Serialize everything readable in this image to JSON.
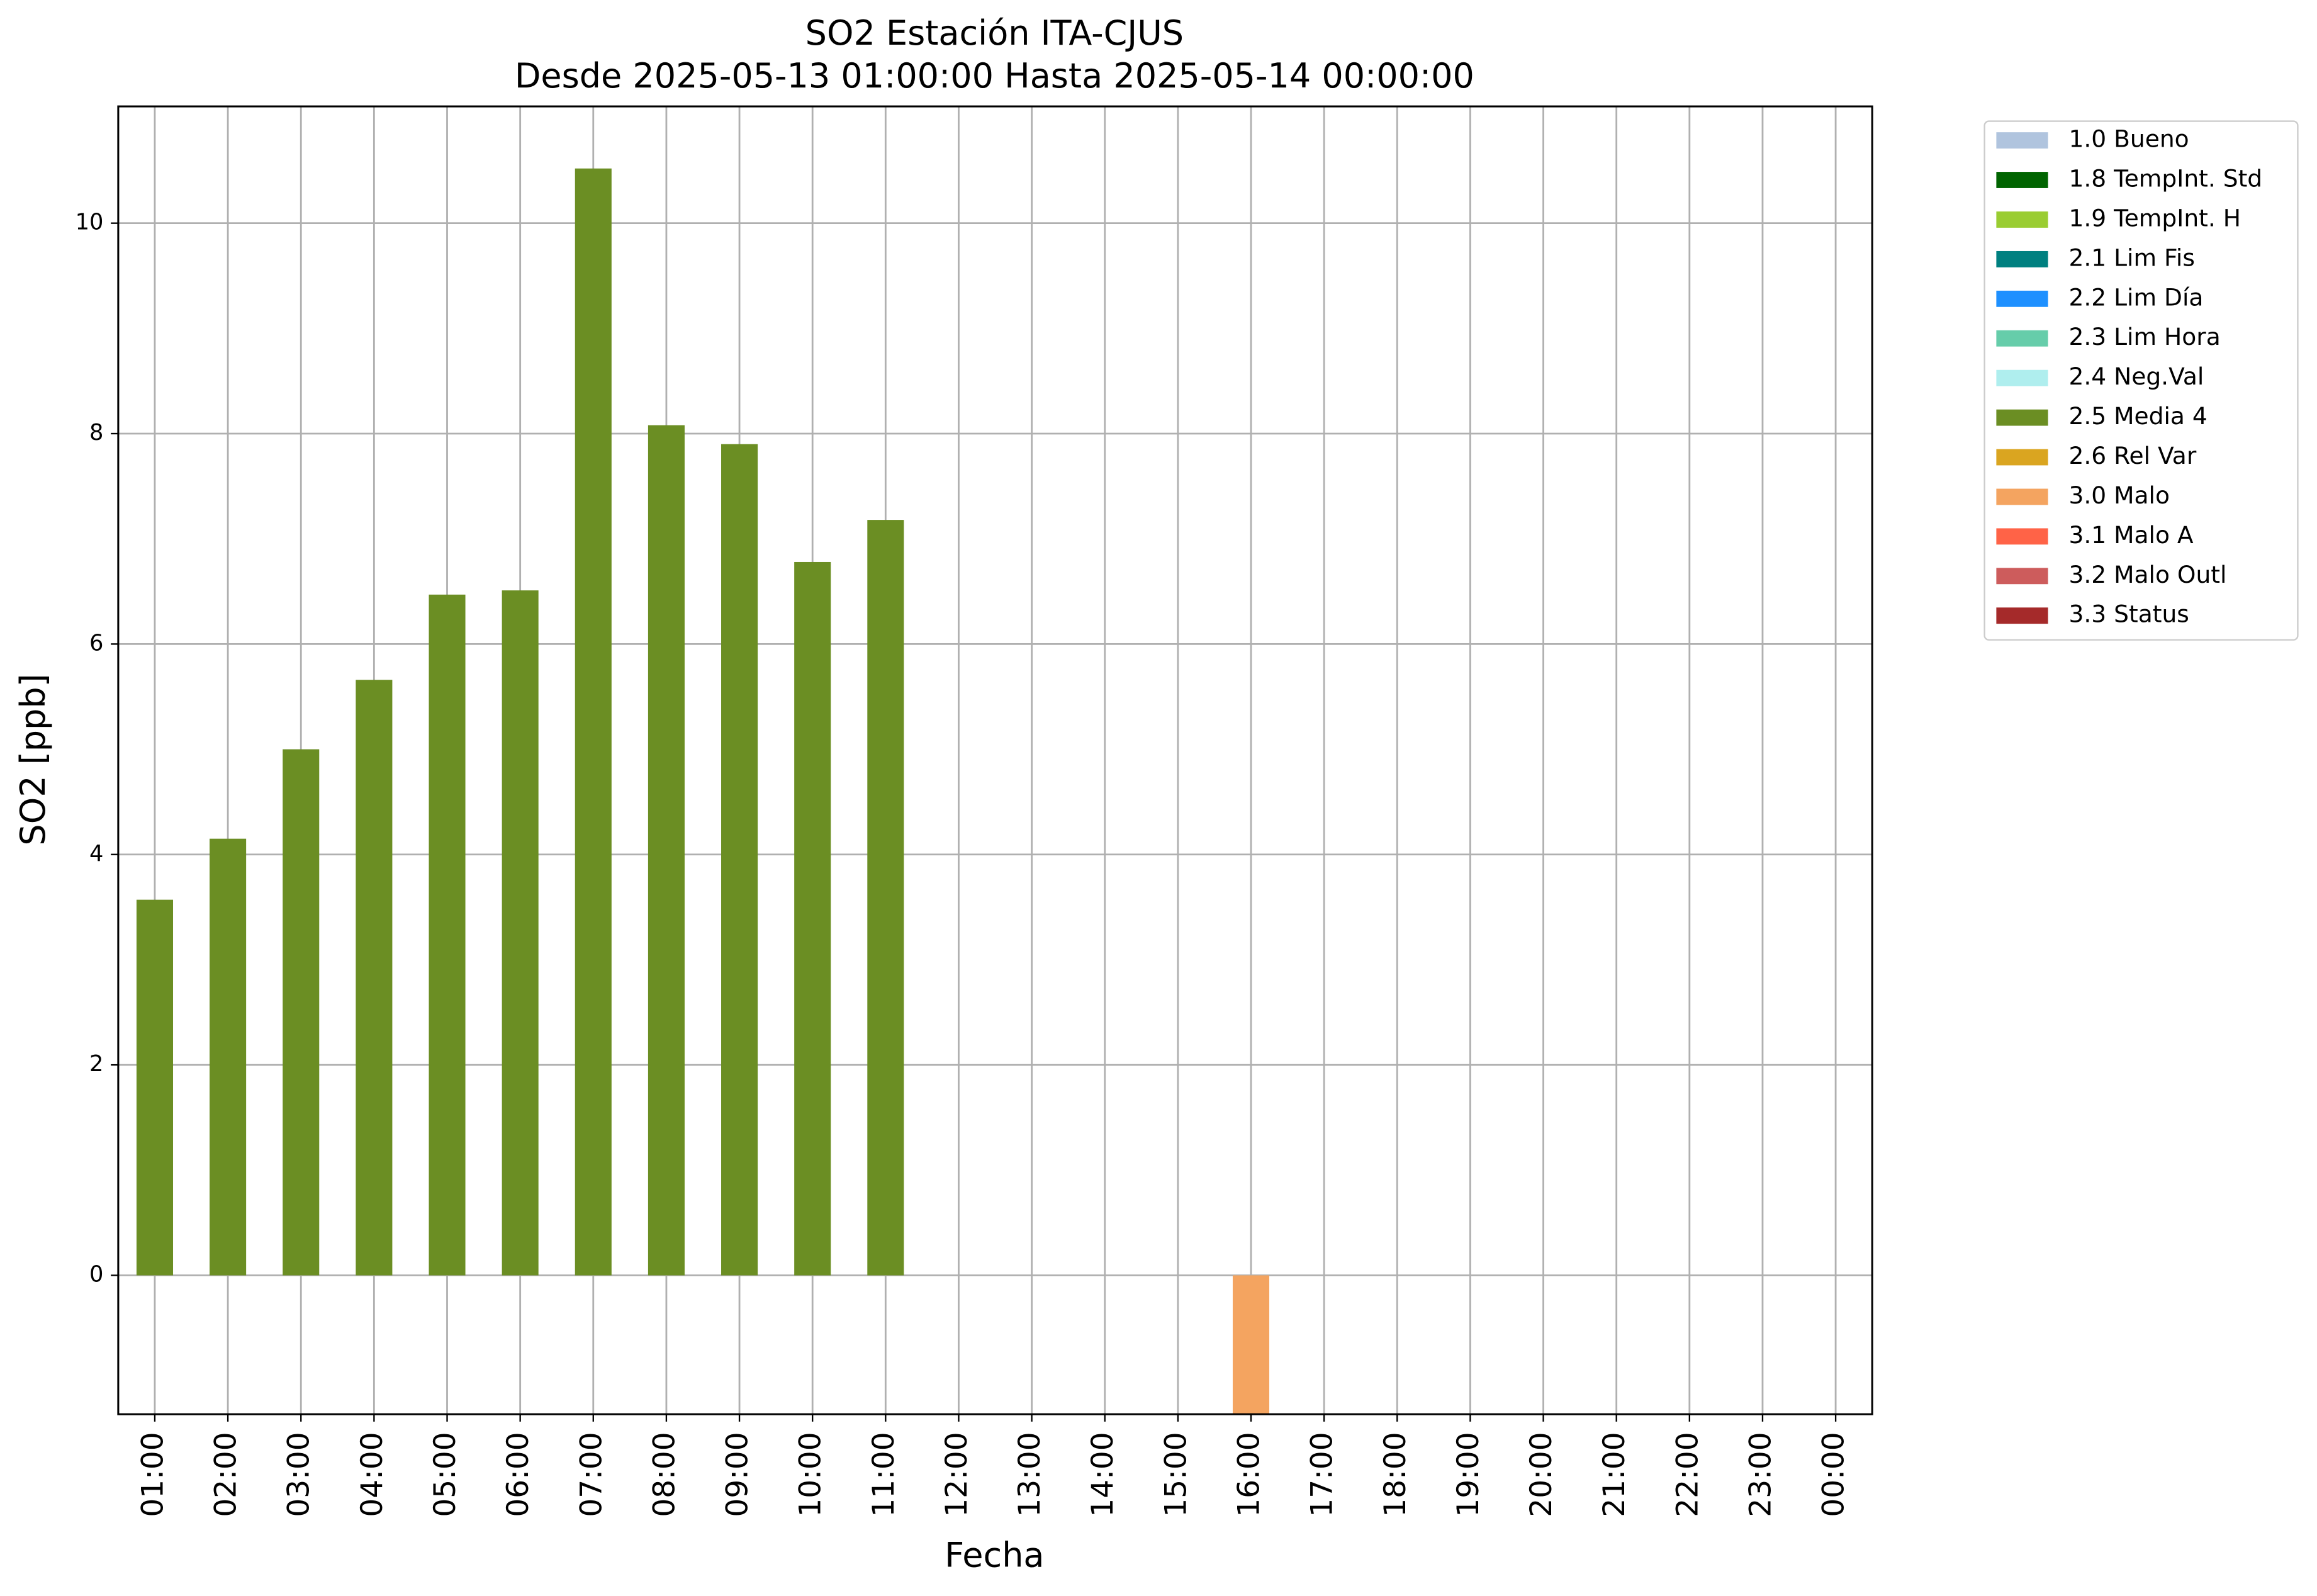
{
  "chart_data": {
    "type": "bar",
    "title": "SO2 Estación ITA-CJUS",
    "subtitle": "Desde 2025-05-13 01:00:00 Hasta 2025-05-14 00:00:00",
    "x_label": "Fecha",
    "y_label": "SO2 [ppb]",
    "categories": [
      "01:00",
      "02:00",
      "03:00",
      "04:00",
      "05:00",
      "06:00",
      "07:00",
      "08:00",
      "09:00",
      "10:00",
      "11:00",
      "12:00",
      "13:00",
      "14:00",
      "15:00",
      "16:00",
      "17:00",
      "18:00",
      "19:00",
      "20:00",
      "21:00",
      "22:00",
      "23:00",
      "00:00"
    ],
    "ylim": [
      -1.32,
      11.11
    ],
    "yticks": [
      0,
      2,
      4,
      6,
      8,
      10
    ],
    "grid": true,
    "legend": "outside-upper-right",
    "series": [
      {
        "name": "1.0 Bueno",
        "color": "#b0c4de",
        "values": [
          null,
          null,
          null,
          null,
          null,
          null,
          null,
          null,
          null,
          null,
          null,
          null,
          null,
          null,
          null,
          null,
          null,
          null,
          null,
          null,
          null,
          null,
          null,
          null
        ]
      },
      {
        "name": "1.8 TempInt. Std",
        "color": "#006400",
        "values": [
          null,
          null,
          null,
          null,
          null,
          null,
          null,
          null,
          null,
          null,
          null,
          null,
          null,
          null,
          null,
          null,
          null,
          null,
          null,
          null,
          null,
          null,
          null,
          null
        ]
      },
      {
        "name": "1.9 TempInt. H",
        "color": "#9acd32",
        "values": [
          null,
          null,
          null,
          null,
          null,
          null,
          null,
          null,
          null,
          null,
          null,
          null,
          null,
          null,
          null,
          null,
          null,
          null,
          null,
          null,
          null,
          null,
          null,
          null
        ]
      },
      {
        "name": "2.1 Lim Fis",
        "color": "#008080",
        "values": [
          null,
          null,
          null,
          null,
          null,
          null,
          null,
          null,
          null,
          null,
          null,
          null,
          null,
          null,
          null,
          null,
          null,
          null,
          null,
          null,
          null,
          null,
          null,
          null
        ]
      },
      {
        "name": "2.2 Lim Día",
        "color": "#1e90ff",
        "values": [
          null,
          null,
          null,
          null,
          null,
          null,
          null,
          null,
          null,
          null,
          null,
          null,
          null,
          null,
          null,
          null,
          null,
          null,
          null,
          null,
          null,
          null,
          null,
          null
        ]
      },
      {
        "name": "2.3 Lim Hora",
        "color": "#66cdaa",
        "values": [
          null,
          null,
          null,
          null,
          null,
          null,
          null,
          null,
          null,
          null,
          null,
          null,
          null,
          null,
          null,
          null,
          null,
          null,
          null,
          null,
          null,
          null,
          null,
          null
        ]
      },
      {
        "name": "2.4 Neg.Val",
        "color": "#afeeee",
        "values": [
          null,
          null,
          null,
          null,
          null,
          null,
          null,
          null,
          null,
          null,
          null,
          null,
          null,
          null,
          null,
          null,
          null,
          null,
          null,
          null,
          null,
          null,
          null,
          null
        ]
      },
      {
        "name": "2.5 Media 4",
        "color": "#6b8e23",
        "values": [
          3.57,
          4.15,
          5.0,
          5.66,
          6.47,
          6.51,
          10.52,
          8.08,
          7.9,
          6.78,
          7.18,
          null,
          null,
          null,
          null,
          null,
          null,
          null,
          null,
          null,
          null,
          null,
          null,
          null
        ]
      },
      {
        "name": "2.6 Rel Var",
        "color": "#daa520",
        "values": [
          null,
          null,
          null,
          null,
          null,
          null,
          null,
          null,
          null,
          null,
          null,
          null,
          null,
          null,
          null,
          null,
          null,
          null,
          null,
          null,
          null,
          null,
          null,
          null
        ]
      },
      {
        "name": "3.0 Malo",
        "color": "#f4a460",
        "values": [
          null,
          null,
          null,
          null,
          null,
          null,
          null,
          null,
          null,
          null,
          null,
          null,
          null,
          null,
          null,
          -1.32,
          null,
          null,
          null,
          null,
          null,
          null,
          null,
          null
        ]
      },
      {
        "name": "3.1 Malo A",
        "color": "#ff6347",
        "values": [
          null,
          null,
          null,
          null,
          null,
          null,
          null,
          null,
          null,
          null,
          null,
          null,
          null,
          null,
          null,
          null,
          null,
          null,
          null,
          null,
          null,
          null,
          null,
          null
        ]
      },
      {
        "name": "3.2 Malo Outl",
        "color": "#cd5c5c",
        "values": [
          null,
          null,
          null,
          null,
          null,
          null,
          null,
          null,
          null,
          null,
          null,
          null,
          null,
          null,
          null,
          null,
          null,
          null,
          null,
          null,
          null,
          null,
          null,
          null
        ]
      },
      {
        "name": "3.3 Status",
        "color": "#a52a2a",
        "values": [
          null,
          null,
          null,
          null,
          null,
          null,
          null,
          null,
          null,
          null,
          null,
          null,
          null,
          null,
          null,
          null,
          null,
          null,
          null,
          null,
          null,
          null,
          null,
          null
        ]
      }
    ]
  }
}
